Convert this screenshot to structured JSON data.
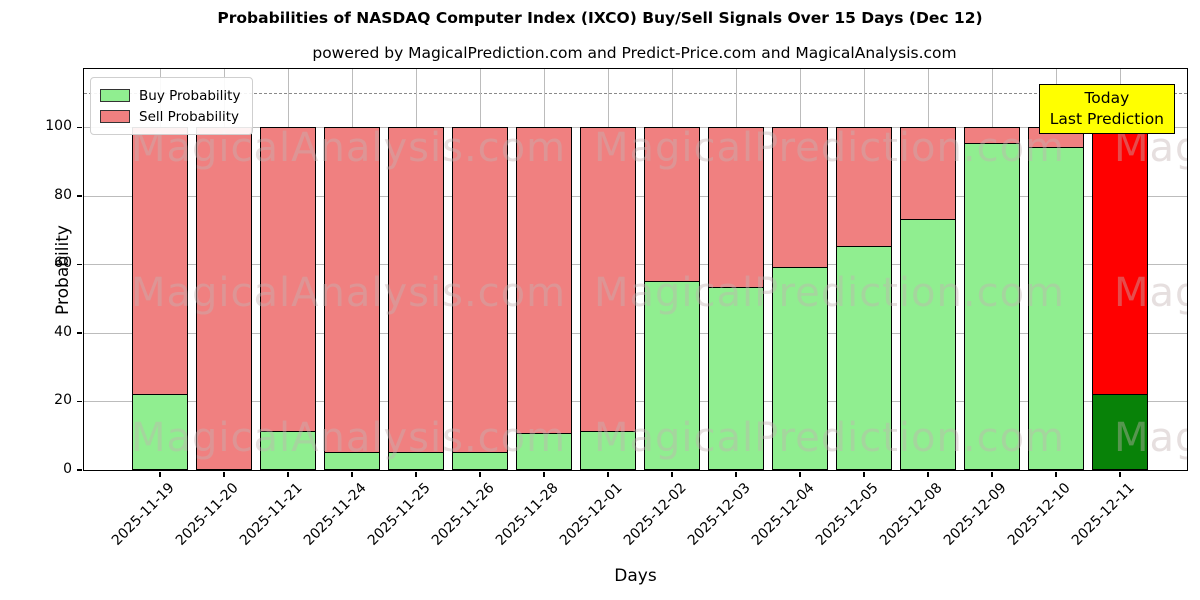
{
  "title": "Probabilities of NASDAQ Computer Index (IXCO) Buy/Sell Signals Over 15 Days (Dec 12)",
  "subtitle": "powered by MagicalPrediction.com and Predict-Price.com and MagicalAnalysis.com",
  "watermarks": {
    "left_text": "MagicalAnalysis.com",
    "right_text": "MagicalPrediction.com"
  },
  "legend": [
    {
      "label": "Buy Probability",
      "color": "#90ee90"
    },
    {
      "label": "Sell Probability",
      "color": "#f08080"
    }
  ],
  "annotation": {
    "line1": "Today",
    "line2": "Last Prediction",
    "bg": "#ffff00"
  },
  "chart_data": {
    "type": "bar",
    "stacked": true,
    "title": "Probabilities of NASDAQ Computer Index (IXCO) Buy/Sell Signals Over 15 Days (Dec 12)",
    "xlabel": "Days",
    "ylabel": "Probability",
    "categories": [
      "2025-11-19",
      "2025-11-20",
      "2025-11-21",
      "2025-11-24",
      "2025-11-25",
      "2025-11-26",
      "2025-11-28",
      "2025-12-01",
      "2025-12-02",
      "2025-12-03",
      "2025-12-04",
      "2025-12-05",
      "2025-12-08",
      "2025-12-09",
      "2025-12-10",
      "2025-12-11"
    ],
    "series": [
      {
        "name": "Buy Probability",
        "color": "#90ee90",
        "values": [
          22,
          0,
          11,
          5,
          5,
          5,
          10.5,
          11,
          55,
          53,
          59,
          65,
          73,
          95,
          94,
          22
        ]
      },
      {
        "name": "Sell Probability",
        "color": "#f08080",
        "values": [
          78,
          100,
          89,
          95,
          95,
          95,
          89.5,
          89,
          45,
          47,
          41,
          35,
          27,
          5,
          6,
          78
        ]
      }
    ],
    "today_index": 15,
    "today_colors": {
      "buy": "#088208",
      "sell": "#ff0000"
    },
    "yticks": [
      0,
      20,
      40,
      60,
      80,
      100
    ],
    "ylim": [
      0,
      117
    ],
    "dashed_line_y": 110,
    "grid": true,
    "legend_position": "upper left"
  }
}
